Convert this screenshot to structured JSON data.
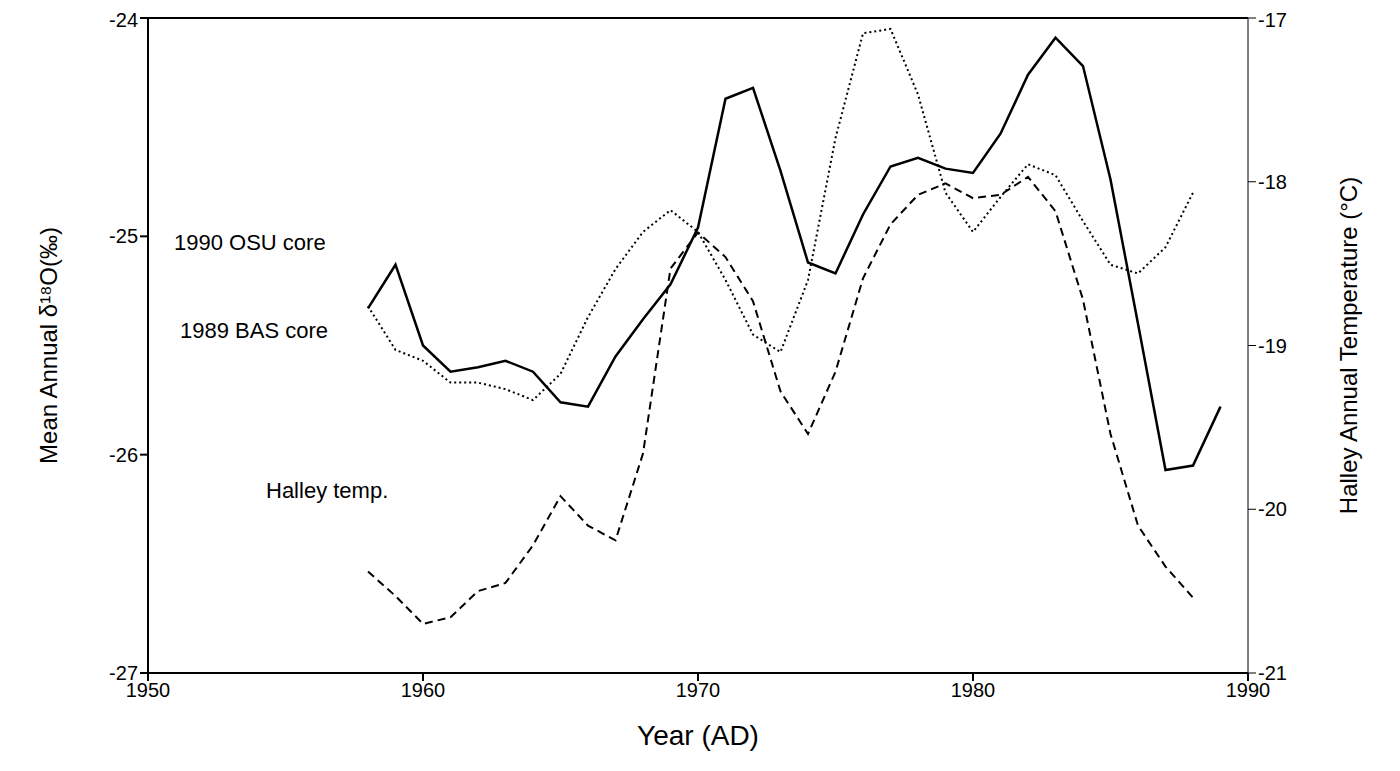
{
  "chart_data": {
    "type": "line",
    "x_label": "Year (AD)",
    "y_label": "Mean Annual δ¹⁸O(‰)",
    "y2_label": "Halley Annual Temperature (°C)",
    "x": [
      1958,
      1959,
      1960,
      1961,
      1962,
      1963,
      1964,
      1965,
      1966,
      1967,
      1968,
      1969,
      1970,
      1971,
      1972,
      1973,
      1974,
      1975,
      1976,
      1977,
      1978,
      1979,
      1980,
      1981,
      1982,
      1983,
      1984,
      1985,
      1986,
      1987,
      1988,
      1989
    ],
    "series": [
      {
        "name": "1990 OSU core",
        "color": "#000000",
        "line_style": "solid",
        "values": [
          -25.33,
          -25.13,
          -25.5,
          -25.62,
          -25.6,
          -25.57,
          -25.62,
          -25.76,
          -25.78,
          -25.55,
          -25.38,
          -25.22,
          -24.96,
          -24.37,
          -24.32,
          -24.7,
          -25.12,
          -25.17,
          -24.9,
          -24.68,
          -24.64,
          -24.69,
          -24.71,
          -24.53,
          -24.26,
          -24.09,
          -24.22,
          -24.74,
          -25.4,
          -26.07,
          -26.05,
          -25.78
        ]
      },
      {
        "name": "1989 BAS core",
        "color": "#000000",
        "line_style": "dotted",
        "values": [
          -25.32,
          -25.52,
          -25.57,
          -25.67,
          -25.67,
          -25.7,
          -25.75,
          -25.63,
          -25.37,
          -25.15,
          -24.98,
          -24.88,
          -24.98,
          -25.2,
          -25.45,
          -25.53,
          -25.2,
          -24.55,
          -24.07,
          -24.05,
          -24.35,
          -24.8,
          -24.98,
          -24.82,
          -24.67,
          -24.72,
          -24.93,
          -25.13,
          -25.17,
          -25.05,
          -24.8,
          null
        ]
      },
      {
        "name": "Halley temp.",
        "color": "#000000",
        "line_style": "dashed",
        "axis": "y2",
        "values": [
          -20.38,
          -20.53,
          -20.7,
          -20.66,
          -20.5,
          -20.45,
          -20.22,
          -19.92,
          -20.1,
          -20.19,
          -19.66,
          -18.53,
          -18.31,
          -18.46,
          -18.73,
          -19.28,
          -19.54,
          -19.16,
          -18.59,
          -18.26,
          -18.08,
          -18.01,
          -18.1,
          -18.08,
          -17.97,
          -18.18,
          -18.72,
          -19.54,
          -20.1,
          -20.35,
          -20.54,
          null
        ]
      }
    ],
    "xlim": [
      1950,
      1990
    ],
    "xticks": [
      1950,
      1960,
      1970,
      1980,
      1990
    ],
    "ylim": [
      -27,
      -24
    ],
    "yticks": [
      -27,
      -26,
      -25,
      -24
    ],
    "y2lim": [
      -21,
      -17
    ],
    "y2ticks": [
      -21,
      -20,
      -19,
      -18,
      -17
    ],
    "grid": false
  }
}
